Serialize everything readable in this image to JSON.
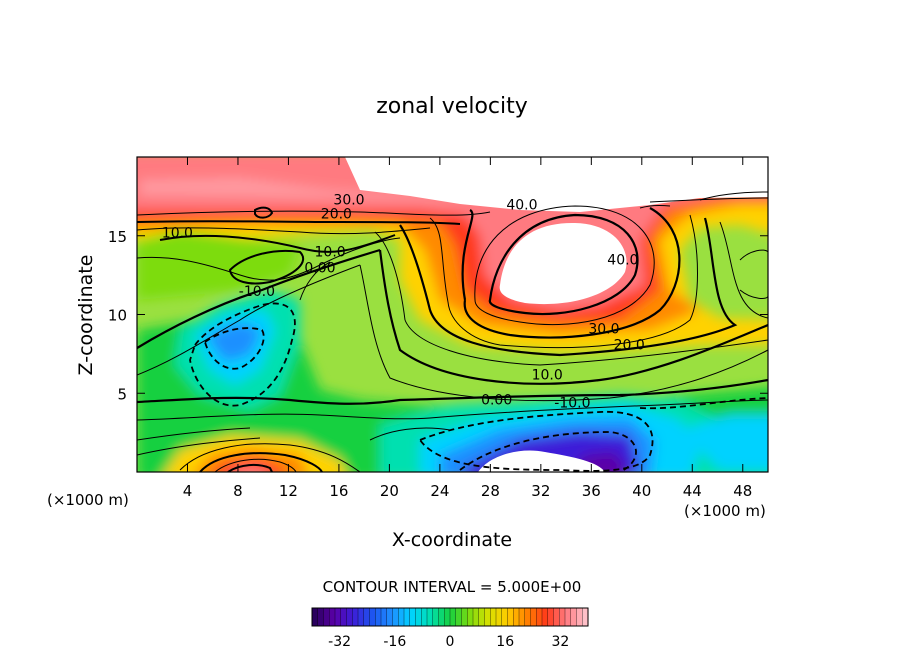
{
  "chart_data": {
    "type": "contour",
    "title": "zonal velocity",
    "xlabel": "X-coordinate",
    "ylabel": "Z-coordinate",
    "x_unit_label": "(×1000 m)",
    "x_unit_label_left": "(×1000 m)",
    "xlim": [
      0,
      50
    ],
    "ylim": [
      0,
      20
    ],
    "x_ticks": [
      4,
      8,
      12,
      16,
      20,
      24,
      28,
      32,
      36,
      40,
      44,
      48
    ],
    "y_ticks": [
      5,
      10,
      15
    ],
    "contour_interval_text": "CONTOUR INTERVAL = 5.000E+00",
    "colorbar": {
      "range": [
        -40,
        40
      ],
      "ticks": [
        -32,
        -16,
        0,
        16,
        32
      ],
      "colors": [
        "#2a005e",
        "#5a00a8",
        "#3c1fd8",
        "#1d55f0",
        "#1e90ff",
        "#00d2ff",
        "#00e0b0",
        "#16d040",
        "#7ddc10",
        "#d8e000",
        "#ffcc00",
        "#ff8000",
        "#ff3a1a",
        "#ff7a80",
        "#ffc0c8"
      ]
    },
    "contour_labels": [
      {
        "text": "40.0",
        "x": 30.5,
        "y": 17.0
      },
      {
        "text": "40.0",
        "x": 38.5,
        "y": 13.5
      },
      {
        "text": "30.0",
        "x": 16.8,
        "y": 17.3
      },
      {
        "text": "20.0",
        "x": 15.8,
        "y": 16.4
      },
      {
        "text": "10.0",
        "x": 3.2,
        "y": 15.2
      },
      {
        "text": "10.0",
        "x": 15.3,
        "y": 14.0
      },
      {
        "text": "0.00",
        "x": 14.5,
        "y": 13.0
      },
      {
        "text": "-10.0",
        "x": 9.5,
        "y": 11.5
      },
      {
        "text": "30.0",
        "x": 37.0,
        "y": 9.1
      },
      {
        "text": "20.0",
        "x": 39.0,
        "y": 8.1
      },
      {
        "text": "10.0",
        "x": 32.5,
        "y": 6.2
      },
      {
        "text": "0.00",
        "x": 28.5,
        "y": 4.6
      },
      {
        "text": "-10.0",
        "x": 34.5,
        "y": 4.4
      }
    ],
    "legend": "none",
    "grid": false
  }
}
